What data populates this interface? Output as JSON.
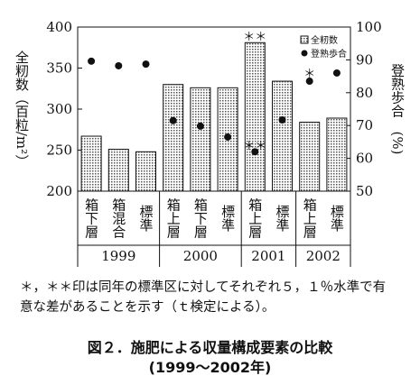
{
  "chart_data": {
    "type": "bar",
    "categories": [
      "箱下層",
      "箱混合",
      "標準",
      "箱上層",
      "箱下層",
      "標準",
      "箱上層",
      "標準",
      "箱上層",
      "標準"
    ],
    "years": [
      "1999",
      "1999",
      "1999",
      "2000",
      "2000",
      "2000",
      "2001",
      "2001",
      "2002",
      "2002"
    ],
    "ylabel": "全籾数（百粒/m²）",
    "y2label": "登熟歩合　(%)",
    "ylim": [
      200,
      400
    ],
    "yticks": [
      200,
      250,
      300,
      350,
      400
    ],
    "y2lim": [
      50,
      100
    ],
    "y2ticks": [
      50,
      60,
      70,
      80,
      90,
      100
    ],
    "series": [
      {
        "name": "全籾数",
        "type": "bar",
        "color": "#555",
        "values": [
          267,
          251,
          248,
          330,
          326,
          326,
          381,
          334,
          284,
          289
        ]
      },
      {
        "name": "登熟歩合",
        "type": "scatter",
        "axis": "y2",
        "color": "#111",
        "values": [
          89.6,
          88.2,
          88.7,
          71.5,
          69.8,
          66.5,
          62,
          71.7,
          83.5,
          86
        ]
      }
    ],
    "annotations": [
      "＊＊",
      "＊＊",
      "＊"
    ],
    "legend": "top-right",
    "footnote": "＊，＊＊印は同年の標準区に対してそれぞれ５，１％水準で有意な差があることを示す（ｔ検定による）。",
    "caption": "図２．施肥による収量構成要素の比較",
    "caption2": "(1999～2002年)"
  }
}
